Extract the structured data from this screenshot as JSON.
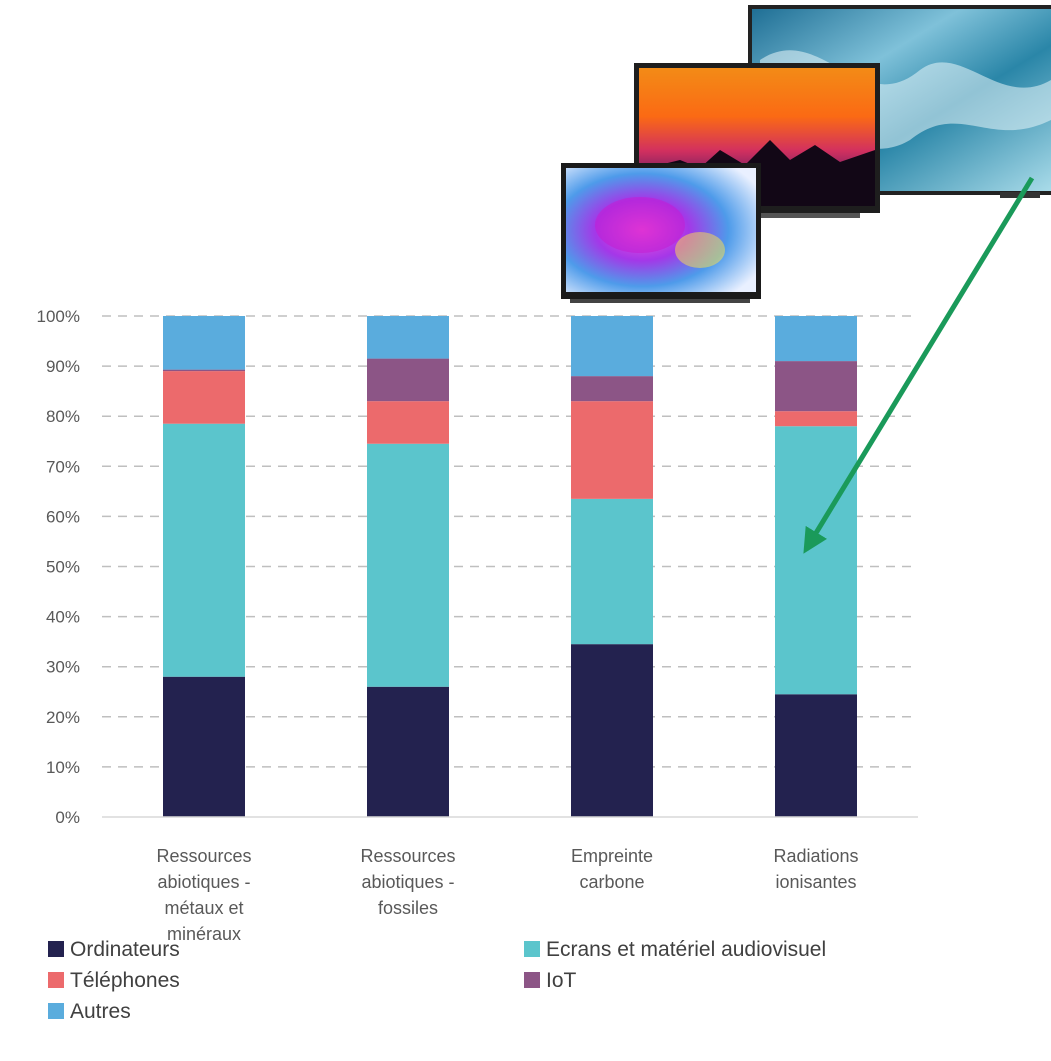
{
  "chart_data": {
    "type": "bar",
    "stacked": true,
    "stack_mode": "percent",
    "categories": [
      [
        "Ressources",
        "abiotiques -",
        "métaux et",
        "minéraux"
      ],
      [
        "Ressources",
        "abiotiques -",
        "fossiles"
      ],
      [
        "Empreinte",
        "carbone"
      ],
      [
        "Radiations",
        "ionisantes"
      ]
    ],
    "series": [
      {
        "name": "Ordinateurs",
        "color": "#23224f",
        "values": [
          28,
          26,
          34.5,
          24.5
        ]
      },
      {
        "name": "Ecrans et matériel audiovisuel",
        "color": "#5bc5cc",
        "values": [
          50.5,
          48.5,
          29,
          53.5
        ]
      },
      {
        "name": "Téléphones",
        "color": "#ec6a6c",
        "values": [
          10.5,
          8.5,
          19.5,
          3
        ]
      },
      {
        "name": "IoT",
        "color": "#8c5586",
        "values": [
          0.3,
          8.5,
          5,
          10
        ]
      },
      {
        "name": "Autres",
        "color": "#5aacdd",
        "values": [
          10.7,
          8.5,
          12,
          9
        ]
      }
    ],
    "ylim": [
      0,
      100
    ],
    "yticks": [
      "0%",
      "10%",
      "20%",
      "30%",
      "40%",
      "50%",
      "60%",
      "70%",
      "80%",
      "90%",
      "100%"
    ],
    "grid": "horizontal-dashed",
    "legend_position": "bottom",
    "annotation": {
      "type": "arrow",
      "color": "#1a9a5a",
      "target_category": 3,
      "target_value": 55
    }
  },
  "illustration": {
    "name": "television-screens-image",
    "description_icon": "tv-icon"
  }
}
